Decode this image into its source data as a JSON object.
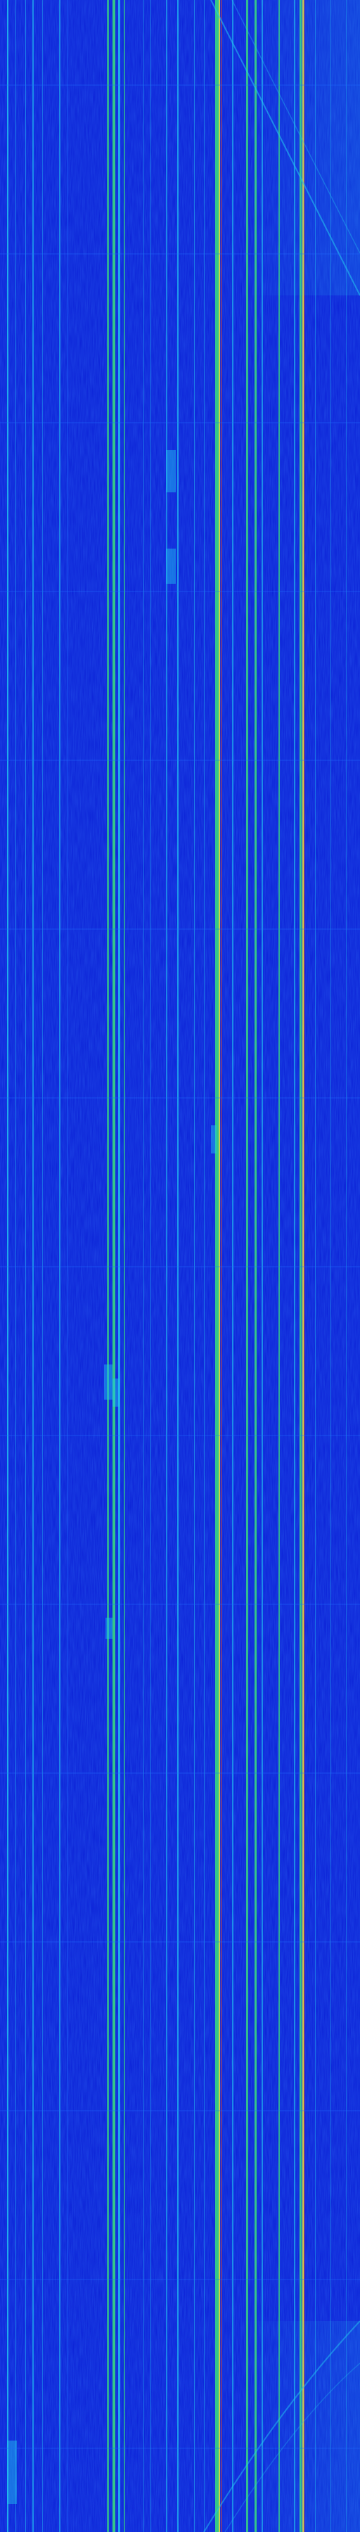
{
  "waterfall": {
    "palette": {
      "background": "#0a1fd6",
      "low": "#1030ff",
      "mid": "#1e6dff",
      "cyan": "#22c8f0",
      "green": "#39e07a",
      "yellow": "#e6e23a",
      "red": "#e8402a"
    }
  }
}
